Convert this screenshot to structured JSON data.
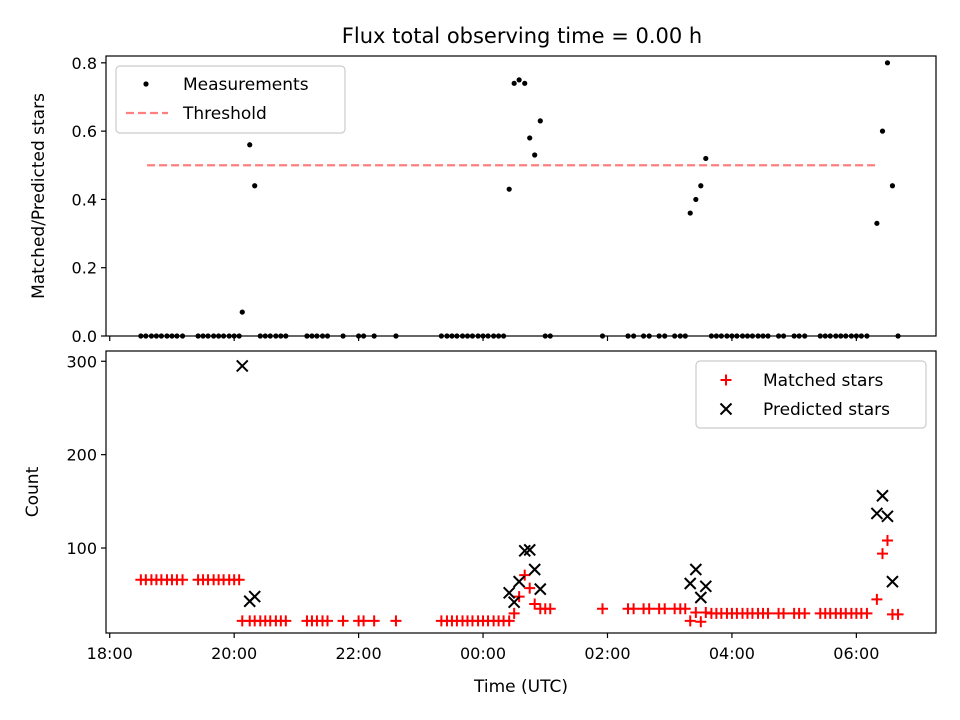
{
  "title": "Flux total observing time = 0.00 h",
  "chart_data": [
    {
      "type": "scatter",
      "ylabel": "Matched/Predicted stars",
      "ylim": [
        0,
        0.82
      ],
      "yticks": [
        "0.0",
        "0.2",
        "0.4",
        "0.6",
        "0.8"
      ],
      "legend_position": "upper left",
      "threshold": {
        "name": "Threshold",
        "value": 0.5,
        "x_range": [
          -5.4,
          6.35
        ],
        "color": "#ff7f7f"
      },
      "series": [
        {
          "name": "Measurements",
          "color": "#000000",
          "points": [
            [
              -5.5,
              0
            ],
            [
              -5.42,
              0
            ],
            [
              -5.33,
              0
            ],
            [
              -5.25,
              0
            ],
            [
              -5.17,
              0
            ],
            [
              -5.08,
              0
            ],
            [
              -5.0,
              0
            ],
            [
              -4.92,
              0
            ],
            [
              -4.83,
              0
            ],
            [
              -4.58,
              0
            ],
            [
              -4.5,
              0
            ],
            [
              -4.42,
              0
            ],
            [
              -4.33,
              0
            ],
            [
              -4.25,
              0
            ],
            [
              -4.17,
              0
            ],
            [
              -4.08,
              0
            ],
            [
              -4.0,
              0
            ],
            [
              -3.92,
              0
            ],
            [
              -3.87,
              0.07
            ],
            [
              -3.75,
              0.56
            ],
            [
              -3.67,
              0.44
            ],
            [
              -3.58,
              0
            ],
            [
              -3.5,
              0
            ],
            [
              -3.42,
              0
            ],
            [
              -3.33,
              0
            ],
            [
              -3.25,
              0
            ],
            [
              -3.17,
              0
            ],
            [
              -2.83,
              0
            ],
            [
              -2.75,
              0
            ],
            [
              -2.67,
              0
            ],
            [
              -2.58,
              0
            ],
            [
              -2.5,
              0
            ],
            [
              -2.25,
              0
            ],
            [
              -2.0,
              0
            ],
            [
              -1.92,
              0
            ],
            [
              -1.75,
              0
            ],
            [
              -1.4,
              0
            ],
            [
              -0.67,
              0
            ],
            [
              -0.58,
              0
            ],
            [
              -0.5,
              0
            ],
            [
              -0.42,
              0
            ],
            [
              -0.33,
              0
            ],
            [
              -0.25,
              0
            ],
            [
              -0.17,
              0
            ],
            [
              -0.08,
              0
            ],
            [
              0.0,
              0
            ],
            [
              0.08,
              0
            ],
            [
              0.17,
              0
            ],
            [
              0.25,
              0
            ],
            [
              0.33,
              0
            ],
            [
              0.42,
              0.43
            ],
            [
              0.5,
              0.74
            ],
            [
              0.58,
              0.75
            ],
            [
              0.67,
              0.74
            ],
            [
              0.75,
              0.58
            ],
            [
              0.83,
              0.53
            ],
            [
              0.92,
              0.63
            ],
            [
              1.0,
              0
            ],
            [
              1.08,
              0
            ],
            [
              1.92,
              0
            ],
            [
              2.33,
              0
            ],
            [
              2.42,
              0
            ],
            [
              2.58,
              0
            ],
            [
              2.67,
              0
            ],
            [
              2.83,
              0
            ],
            [
              2.92,
              0
            ],
            [
              3.08,
              0
            ],
            [
              3.17,
              0
            ],
            [
              3.25,
              0
            ],
            [
              3.33,
              0.36
            ],
            [
              3.42,
              0.4
            ],
            [
              3.5,
              0.44
            ],
            [
              3.58,
              0.52
            ],
            [
              3.67,
              0
            ],
            [
              3.75,
              0
            ],
            [
              3.83,
              0
            ],
            [
              3.92,
              0
            ],
            [
              4.0,
              0
            ],
            [
              4.08,
              0
            ],
            [
              4.17,
              0
            ],
            [
              4.25,
              0
            ],
            [
              4.33,
              0
            ],
            [
              4.42,
              0
            ],
            [
              4.5,
              0
            ],
            [
              4.58,
              0
            ],
            [
              4.75,
              0
            ],
            [
              4.83,
              0
            ],
            [
              5.0,
              0
            ],
            [
              5.08,
              0
            ],
            [
              5.17,
              0
            ],
            [
              5.42,
              0
            ],
            [
              5.5,
              0
            ],
            [
              5.58,
              0
            ],
            [
              5.67,
              0
            ],
            [
              5.75,
              0
            ],
            [
              5.83,
              0
            ],
            [
              5.92,
              0
            ],
            [
              6.0,
              0
            ],
            [
              6.08,
              0
            ],
            [
              6.17,
              0
            ],
            [
              6.33,
              0.33
            ],
            [
              6.42,
              0.6
            ],
            [
              6.5,
              0.8
            ],
            [
              6.58,
              0.44
            ],
            [
              6.67,
              0
            ]
          ]
        }
      ]
    },
    {
      "type": "scatter",
      "xlabel": "Time (UTC)",
      "ylabel": "Count",
      "ylim": [
        9,
        311
      ],
      "yticks": [
        "100",
        "200",
        "300"
      ],
      "xlim": [
        -6.06,
        7.28
      ],
      "xticks": [
        "18:00",
        "20:00",
        "22:00",
        "00:00",
        "02:00",
        "04:00",
        "06:00"
      ],
      "legend_position": "upper right",
      "series": [
        {
          "name": "Matched stars",
          "marker": "plus",
          "color": "#ff0000",
          "points": [
            [
              -5.5,
              66
            ],
            [
              -5.42,
              66
            ],
            [
              -5.33,
              66
            ],
            [
              -5.25,
              66
            ],
            [
              -5.17,
              66
            ],
            [
              -5.08,
              66
            ],
            [
              -5.0,
              66
            ],
            [
              -4.92,
              66
            ],
            [
              -4.83,
              66
            ],
            [
              -4.58,
              66
            ],
            [
              -4.5,
              66
            ],
            [
              -4.42,
              66
            ],
            [
              -4.33,
              66
            ],
            [
              -4.25,
              66
            ],
            [
              -4.17,
              66
            ],
            [
              -4.08,
              66
            ],
            [
              -4.0,
              66
            ],
            [
              -3.92,
              66
            ],
            [
              -3.87,
              22
            ],
            [
              -3.75,
              22
            ],
            [
              -3.67,
              22
            ],
            [
              -3.58,
              22
            ],
            [
              -3.5,
              22
            ],
            [
              -3.42,
              22
            ],
            [
              -3.33,
              22
            ],
            [
              -3.25,
              22
            ],
            [
              -3.17,
              22
            ],
            [
              -2.83,
              22
            ],
            [
              -2.75,
              22
            ],
            [
              -2.67,
              22
            ],
            [
              -2.58,
              22
            ],
            [
              -2.5,
              22
            ],
            [
              -2.25,
              22
            ],
            [
              -2.0,
              22
            ],
            [
              -1.92,
              22
            ],
            [
              -1.75,
              22
            ],
            [
              -1.4,
              22
            ],
            [
              -0.67,
              22
            ],
            [
              -0.58,
              22
            ],
            [
              -0.5,
              22
            ],
            [
              -0.42,
              22
            ],
            [
              -0.33,
              22
            ],
            [
              -0.25,
              22
            ],
            [
              -0.17,
              22
            ],
            [
              -0.08,
              22
            ],
            [
              0.0,
              22
            ],
            [
              0.08,
              22
            ],
            [
              0.17,
              22
            ],
            [
              0.25,
              22
            ],
            [
              0.33,
              22
            ],
            [
              0.42,
              22
            ],
            [
              0.5,
              30
            ],
            [
              0.58,
              48
            ],
            [
              0.67,
              71
            ],
            [
              0.75,
              57
            ],
            [
              0.83,
              40
            ],
            [
              0.92,
              35
            ],
            [
              1.0,
              35
            ],
            [
              1.08,
              35
            ],
            [
              1.92,
              35
            ],
            [
              2.33,
              35
            ],
            [
              2.42,
              35
            ],
            [
              2.58,
              35
            ],
            [
              2.67,
              35
            ],
            [
              2.83,
              35
            ],
            [
              2.92,
              35
            ],
            [
              3.08,
              35
            ],
            [
              3.17,
              35
            ],
            [
              3.25,
              35
            ],
            [
              3.33,
              22
            ],
            [
              3.42,
              31
            ],
            [
              3.5,
              21
            ],
            [
              3.58,
              31
            ],
            [
              3.67,
              30
            ],
            [
              3.75,
              30
            ],
            [
              3.83,
              30
            ],
            [
              3.92,
              30
            ],
            [
              4.0,
              30
            ],
            [
              4.08,
              30
            ],
            [
              4.17,
              30
            ],
            [
              4.25,
              30
            ],
            [
              4.33,
              30
            ],
            [
              4.42,
              30
            ],
            [
              4.5,
              30
            ],
            [
              4.58,
              30
            ],
            [
              4.75,
              30
            ],
            [
              4.83,
              30
            ],
            [
              5.0,
              30
            ],
            [
              5.08,
              30
            ],
            [
              5.17,
              30
            ],
            [
              5.42,
              30
            ],
            [
              5.5,
              30
            ],
            [
              5.58,
              30
            ],
            [
              5.67,
              30
            ],
            [
              5.75,
              30
            ],
            [
              5.83,
              30
            ],
            [
              5.92,
              30
            ],
            [
              6.0,
              30
            ],
            [
              6.08,
              30
            ],
            [
              6.17,
              30
            ],
            [
              6.33,
              45
            ],
            [
              6.42,
              94
            ],
            [
              6.5,
              108
            ],
            [
              6.58,
              29
            ],
            [
              6.67,
              29
            ]
          ]
        },
        {
          "name": "Predicted stars",
          "marker": "x",
          "color": "#000000",
          "points": [
            [
              -3.87,
              295
            ],
            [
              -3.75,
              43
            ],
            [
              -3.67,
              48
            ],
            [
              0.42,
              52
            ],
            [
              0.5,
              42
            ],
            [
              0.58,
              64
            ],
            [
              0.67,
              97
            ],
            [
              0.75,
              98
            ],
            [
              0.83,
              77
            ],
            [
              0.92,
              56
            ],
            [
              3.33,
              62
            ],
            [
              3.42,
              77
            ],
            [
              3.5,
              47
            ],
            [
              3.58,
              59
            ],
            [
              6.33,
              137
            ],
            [
              6.42,
              156
            ],
            [
              6.5,
              134
            ],
            [
              6.58,
              64
            ]
          ]
        }
      ]
    }
  ]
}
